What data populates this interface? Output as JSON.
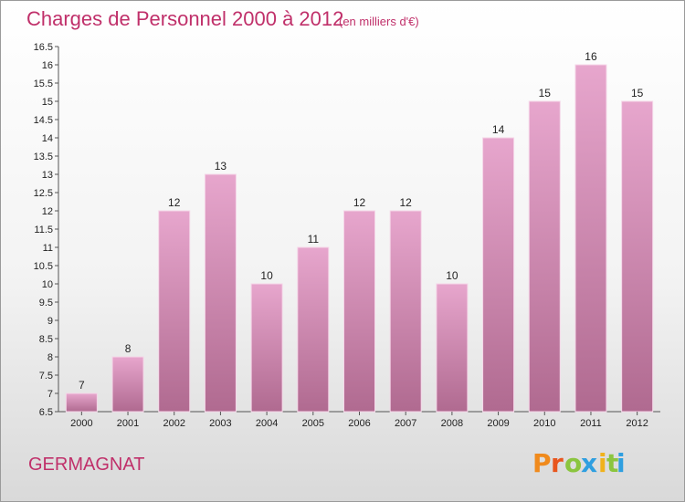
{
  "chart_data": {
    "type": "bar",
    "title": "Charges de Personnel 2000 à 2012",
    "subtitle": "(en milliers d'€)",
    "categories": [
      "2000",
      "2001",
      "2002",
      "2003",
      "2004",
      "2005",
      "2006",
      "2007",
      "2008",
      "2009",
      "2010",
      "2011",
      "2012"
    ],
    "values": [
      7,
      8,
      12,
      13,
      10,
      11,
      12,
      12,
      10,
      14,
      15,
      16,
      15
    ],
    "value_labels": [
      "7",
      "8",
      "12",
      "13",
      "10",
      "11",
      "12",
      "12",
      "10",
      "14",
      "15",
      "16",
      "15"
    ],
    "ylim": [
      6.5,
      16.5
    ],
    "yticks": [
      6.5,
      7,
      7.5,
      8,
      8.5,
      9,
      9.5,
      10,
      10.5,
      11,
      11.5,
      12,
      12.5,
      13,
      13.5,
      14,
      14.5,
      15,
      15.5,
      16,
      16.5
    ],
    "ytick_labels": [
      "6.5",
      "7",
      "7.5",
      "8",
      "8.5",
      "9",
      "9.5",
      "10",
      "10.5",
      "11",
      "11.5",
      "12",
      "12.5",
      "13",
      "13.5",
      "14",
      "14.5",
      "15",
      "15.5",
      "16",
      "16.5"
    ],
    "xlabel": "",
    "ylabel": "",
    "grid": false,
    "legend": "none",
    "bar_color_top": "#e7a6cd",
    "bar_color_bottom": "#b06a90"
  },
  "footer": {
    "location": "GERMAGNAT",
    "logo_letters": [
      "P",
      "r",
      "o",
      "x",
      "i",
      "t",
      "i"
    ],
    "logo_colors": [
      "#f08a1c",
      "#e8561e",
      "#8bc53f",
      "#2f9fe0",
      "#f0b21c",
      "#8bc53f",
      "#2f9fe0"
    ]
  }
}
